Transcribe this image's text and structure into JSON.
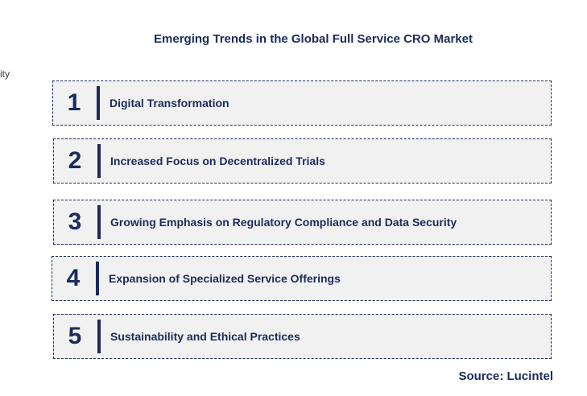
{
  "title": "Emerging Trends in the Global Full Service CRO Market",
  "side_fragment": "ity",
  "items": [
    {
      "number": "1",
      "label": "Digital Transformation"
    },
    {
      "number": "2",
      "label": "Increased Focus on Decentralized Trials"
    },
    {
      "number": "3",
      "label": "Growing Emphasis on Regulatory Compliance and Data Security"
    },
    {
      "number": "4",
      "label": "Expansion of Specialized Service Offerings"
    },
    {
      "number": "5",
      "label": "Sustainability and Ethical Practices"
    }
  ],
  "source": "Source: Lucintel"
}
